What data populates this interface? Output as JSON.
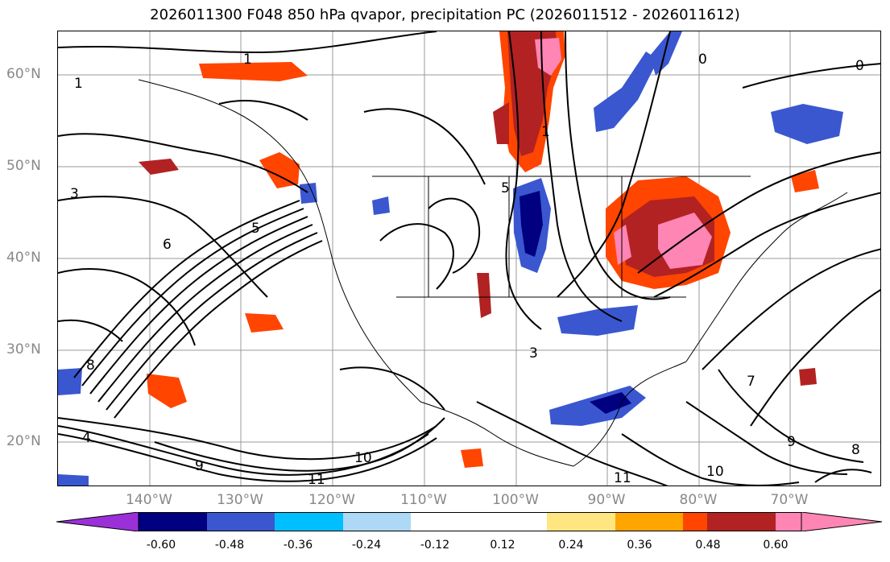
{
  "title": "2026011300 F048 850 hPa qvapor, precipitation PC (2026011512 - 2026011612)",
  "lat_labels": [
    "60°N",
    "50°N",
    "40°N",
    "30°N",
    "20°N"
  ],
  "lon_labels": [
    "140°W",
    "130°W",
    "120°W",
    "110°W",
    "100°W",
    "90°W",
    "80°W",
    "70°W"
  ],
  "contour_labels": [
    "1",
    "0",
    "1",
    "3",
    "5",
    "6",
    "4",
    "8",
    "9",
    "10",
    "11",
    "7",
    "3",
    "5",
    "11",
    "10",
    "9",
    "8",
    "0",
    "1"
  ],
  "colorbar": {
    "ticks": [
      "-0.60",
      "-0.48",
      "-0.36",
      "-0.24",
      "-0.12",
      "0.12",
      "0.24",
      "0.36",
      "0.48",
      "0.60"
    ],
    "colors": [
      "#9b30d9",
      "#000080",
      "#3a57d0",
      "#00bfff",
      "#add8f6",
      "#ffffff",
      "#ffe680",
      "#ffa500",
      "#ff4500",
      "#b22222",
      "#ff85b4",
      "#ff85b4"
    ]
  },
  "layers": {
    "contours": "qvapor",
    "shading": "precipitation PC"
  }
}
